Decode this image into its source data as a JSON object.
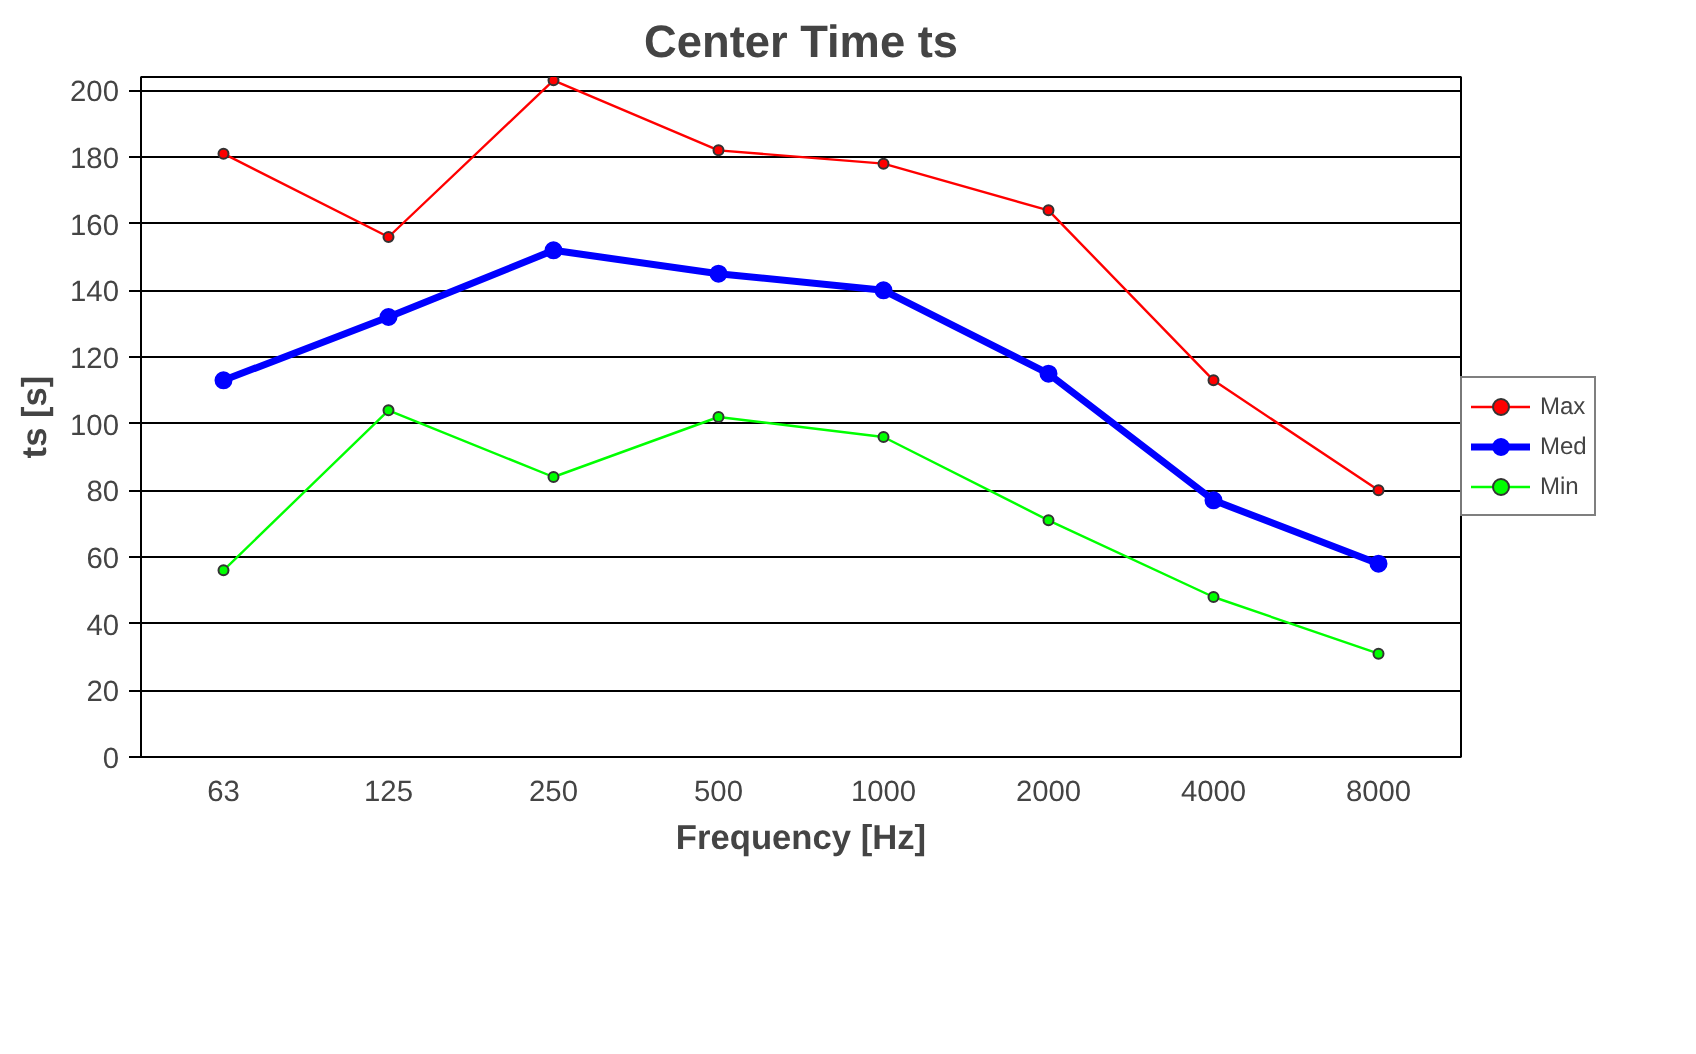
{
  "chart_data": {
    "type": "line",
    "title": "Center Time ts",
    "xlabel": "Frequency [Hz]",
    "ylabel": "ts [s]",
    "categories": [
      "63",
      "125",
      "250",
      "500",
      "1000",
      "2000",
      "4000",
      "8000"
    ],
    "series": [
      {
        "name": "Max",
        "color": "#ff0000",
        "values": [
          181,
          156,
          203,
          182,
          178,
          164,
          113,
          80
        ]
      },
      {
        "name": "Med",
        "color": "#0000ff",
        "values": [
          113,
          132,
          152,
          145,
          140,
          115,
          77,
          58
        ]
      },
      {
        "name": "Min",
        "color": "#00ff00",
        "values": [
          56,
          104,
          84,
          102,
          96,
          71,
          48,
          31
        ]
      }
    ],
    "ylim": [
      0,
      204
    ],
    "yticks": [
      0,
      20,
      40,
      60,
      80,
      100,
      120,
      140,
      160,
      180,
      200
    ],
    "grid": "y",
    "legend": "right",
    "marker": "circle",
    "line_style": "solid"
  }
}
